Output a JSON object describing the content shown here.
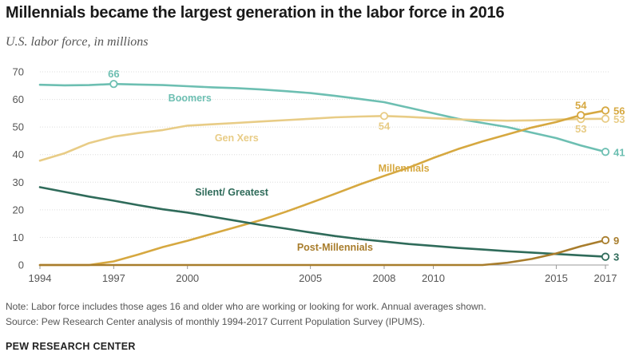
{
  "title": "Millennials became the largest generation in the labor force in 2016",
  "subtitle": "U.S. labor force, in millions",
  "note": "Note: Labor force includes those ages 16 and older who are working or looking for work. Annual averages shown.",
  "source": "Source: Pew Research Center analysis of monthly 1994-2017 Current Population Survey (IPUMS).",
  "brand": "PEW RESEARCH CENTER",
  "colors": {
    "boomers": "#6dbfb2",
    "genx": "#e8cc86",
    "millennials": "#d6a840",
    "silent": "#2f6b5a",
    "postmill": "#a87d2c",
    "grid": "#dddddd",
    "axis": "#999999",
    "tick_text": "#555555"
  },
  "chart_data": {
    "type": "line",
    "ylim": [
      0,
      70
    ],
    "xlim": [
      1994,
      2017
    ],
    "yticks": [
      "0",
      "10",
      "20",
      "30",
      "40",
      "50",
      "60",
      "70"
    ],
    "xticks": [
      "1994",
      "1997",
      "2000",
      "2005",
      "2008",
      "2010",
      "2015",
      "2017"
    ],
    "grid": true,
    "series": [
      {
        "name": "Boomers",
        "color_key": "boomers",
        "x": [
          1994,
          1995,
          1996,
          1997,
          1998,
          1999,
          2000,
          2001,
          2002,
          2003,
          2004,
          2005,
          2006,
          2007,
          2008,
          2009,
          2010,
          2011,
          2012,
          2013,
          2014,
          2015,
          2016,
          2017
        ],
        "y": [
          65.3,
          65.1,
          65.2,
          65.6,
          65.4,
          65.2,
          64.8,
          64.4,
          64.1,
          63.6,
          63.0,
          62.3,
          61.3,
          60.2,
          59.0,
          57.0,
          55.0,
          53.0,
          51.5,
          50.0,
          48.0,
          46.0,
          43.3,
          41
        ],
        "highlights": [
          {
            "x": 1997,
            "y": 65.6,
            "label": "66",
            "pos": "above"
          },
          {
            "x": 2017,
            "y": 41,
            "label": "41",
            "pos": "right"
          }
        ]
      },
      {
        "name": "Gen Xers",
        "color_key": "genx",
        "x": [
          1994,
          1995,
          1996,
          1997,
          1998,
          1999,
          2000,
          2001,
          2002,
          2003,
          2004,
          2005,
          2006,
          2007,
          2008,
          2009,
          2010,
          2011,
          2012,
          2013,
          2014,
          2015,
          2016,
          2017
        ],
        "y": [
          37.8,
          40.5,
          44.2,
          46.5,
          47.8,
          48.9,
          50.5,
          51.0,
          51.5,
          52.0,
          52.5,
          53.0,
          53.5,
          53.8,
          54.0,
          53.7,
          53.2,
          52.8,
          52.5,
          52.3,
          52.4,
          52.7,
          52.9,
          53
        ],
        "highlights": [
          {
            "x": 2008,
            "y": 54,
            "label": "54",
            "pos": "below"
          },
          {
            "x": 2016,
            "y": 52.9,
            "label": "53",
            "pos": "below"
          },
          {
            "x": 2017,
            "y": 53,
            "label": "53",
            "pos": "right"
          }
        ]
      },
      {
        "name": "Millennials",
        "color_key": "millennials",
        "x": [
          1994,
          1995,
          1996,
          1997,
          1998,
          1999,
          2000,
          2001,
          2002,
          2003,
          2004,
          2005,
          2006,
          2007,
          2008,
          2009,
          2010,
          2011,
          2012,
          2013,
          2014,
          2015,
          2016,
          2017
        ],
        "y": [
          0,
          0,
          0,
          1.3,
          3.8,
          6.5,
          8.8,
          11.3,
          13.8,
          16.3,
          19.3,
          22.5,
          25.8,
          29.2,
          32.3,
          35.3,
          38.8,
          42.0,
          44.8,
          47.3,
          49.8,
          51.8,
          54.3,
          56
        ],
        "highlights": [
          {
            "x": 2016,
            "y": 54.3,
            "label": "54",
            "pos": "above"
          },
          {
            "x": 2017,
            "y": 56,
            "label": "56",
            "pos": "right"
          }
        ]
      },
      {
        "name": "Silent/ Greatest",
        "color_key": "silent",
        "x": [
          1994,
          1995,
          1996,
          1997,
          1998,
          1999,
          2000,
          2001,
          2002,
          2003,
          2004,
          2005,
          2006,
          2007,
          2008,
          2009,
          2010,
          2011,
          2012,
          2013,
          2014,
          2015,
          2016,
          2017
        ],
        "y": [
          28.2,
          26.5,
          24.8,
          23.3,
          21.7,
          20.2,
          19.0,
          17.5,
          16.0,
          14.5,
          13.2,
          11.8,
          10.5,
          9.4,
          8.5,
          7.6,
          6.9,
          6.2,
          5.6,
          5.0,
          4.5,
          4.0,
          3.5,
          3
        ],
        "highlights": [
          {
            "x": 2017,
            "y": 3,
            "label": "3",
            "pos": "right"
          }
        ]
      },
      {
        "name": "Post-Millennials",
        "color_key": "postmill",
        "x": [
          1994,
          1995,
          1996,
          1997,
          1998,
          1999,
          2000,
          2001,
          2002,
          2003,
          2004,
          2005,
          2006,
          2007,
          2008,
          2009,
          2010,
          2011,
          2012,
          2013,
          2014,
          2015,
          2016,
          2017
        ],
        "y": [
          0,
          0,
          0,
          0,
          0,
          0,
          0,
          0,
          0,
          0,
          0,
          0,
          0,
          0,
          0,
          0,
          0,
          0,
          0,
          0.8,
          2.2,
          4.2,
          6.8,
          9
        ],
        "highlights": [
          {
            "x": 2017,
            "y": 9,
            "label": "9",
            "pos": "right"
          }
        ]
      }
    ],
    "series_labels": [
      {
        "series": 0,
        "text": "Boomers",
        "x": 2000.1,
        "y": 59.3
      },
      {
        "series": 1,
        "text": "Gen Xers",
        "x": 2002.0,
        "y": 44.9
      },
      {
        "series": 2,
        "text": "Millennials",
        "x": 2008.8,
        "y": 33.9
      },
      {
        "series": 3,
        "text": "Silent/ Greatest",
        "x": 2001.8,
        "y": 25.2
      },
      {
        "series": 4,
        "text": "Post-Millennials",
        "x": 2006.0,
        "y": 5.2
      }
    ]
  }
}
